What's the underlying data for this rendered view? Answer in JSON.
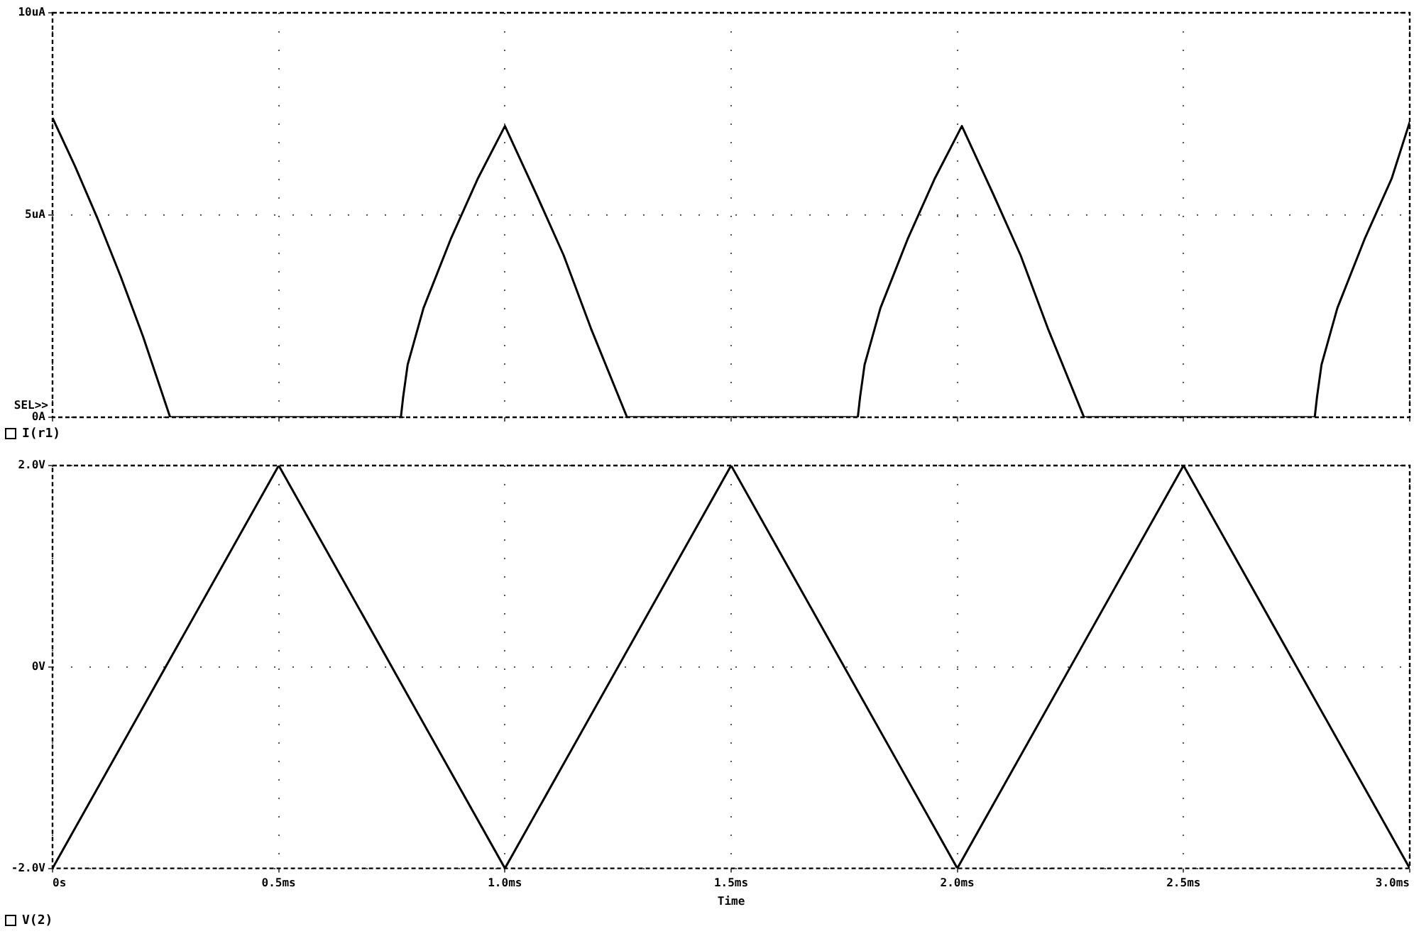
{
  "chart_data": [
    {
      "type": "line",
      "xlabel": null,
      "annotations": [
        "SEL>>"
      ],
      "legend": "bottom left",
      "grid": true,
      "tick_labels": "y",
      "marker": "none",
      "line_style": "solid",
      "xlim": [
        0,
        3
      ],
      "xticks": [
        0,
        0.5,
        1,
        1.5,
        2,
        2.5,
        3
      ],
      "ylim": [
        0,
        10
      ],
      "yticks": [
        {
          "value": 0,
          "label": "0A"
        },
        {
          "value": 5,
          "label": "5uA"
        },
        {
          "value": 10,
          "label": "10uA"
        }
      ],
      "series": [
        {
          "name": "I(r1)",
          "color": "#000000",
          "x": [
            0,
            0.05,
            0.1,
            0.15,
            0.2,
            0.26,
            0.77,
            0.775,
            0.785,
            0.82,
            0.88,
            0.94,
            1.0,
            1.07,
            1.13,
            1.19,
            1.27,
            1.78,
            1.785,
            1.795,
            1.83,
            1.89,
            1.95,
            2.01,
            2.08,
            2.14,
            2.2,
            2.28,
            2.79,
            2.795,
            2.805,
            2.84,
            2.9,
            2.96,
            3.0
          ],
          "values": [
            7.4,
            6.2,
            4.9,
            3.5,
            2.0,
            0,
            0,
            0.5,
            1.3,
            2.7,
            4.4,
            5.9,
            7.2,
            5.5,
            4.0,
            2.2,
            0,
            0,
            0.5,
            1.3,
            2.7,
            4.4,
            5.9,
            7.2,
            5.5,
            4.0,
            2.2,
            0,
            0,
            0.5,
            1.3,
            2.7,
            4.4,
            5.9,
            7.3
          ]
        }
      ]
    },
    {
      "type": "line",
      "xlabel": "Time",
      "legend": "bottom left",
      "grid": true,
      "marker": "none",
      "line_style": "solid",
      "xlim": [
        0,
        3
      ],
      "xticks": [
        {
          "value": 0,
          "label": "0s"
        },
        {
          "value": 0.5,
          "label": "0.5ms"
        },
        {
          "value": 1,
          "label": "1.0ms"
        },
        {
          "value": 1.5,
          "label": "1.5ms"
        },
        {
          "value": 2,
          "label": "2.0ms"
        },
        {
          "value": 2.5,
          "label": "2.5ms"
        },
        {
          "value": 3,
          "label": "3.0ms"
        }
      ],
      "ylim": [
        -2,
        2
      ],
      "yticks": [
        {
          "value": -2,
          "label": "-2.0V"
        },
        {
          "value": 0,
          "label": "0V"
        },
        {
          "value": 2,
          "label": "2.0V"
        }
      ],
      "series": [
        {
          "name": "V(2)",
          "color": "#000000",
          "x": [
            0,
            0.5,
            1,
            1.5,
            2,
            2.5,
            3
          ],
          "values": [
            -2,
            2,
            -2,
            2,
            -2,
            2,
            -2
          ]
        }
      ]
    }
  ]
}
